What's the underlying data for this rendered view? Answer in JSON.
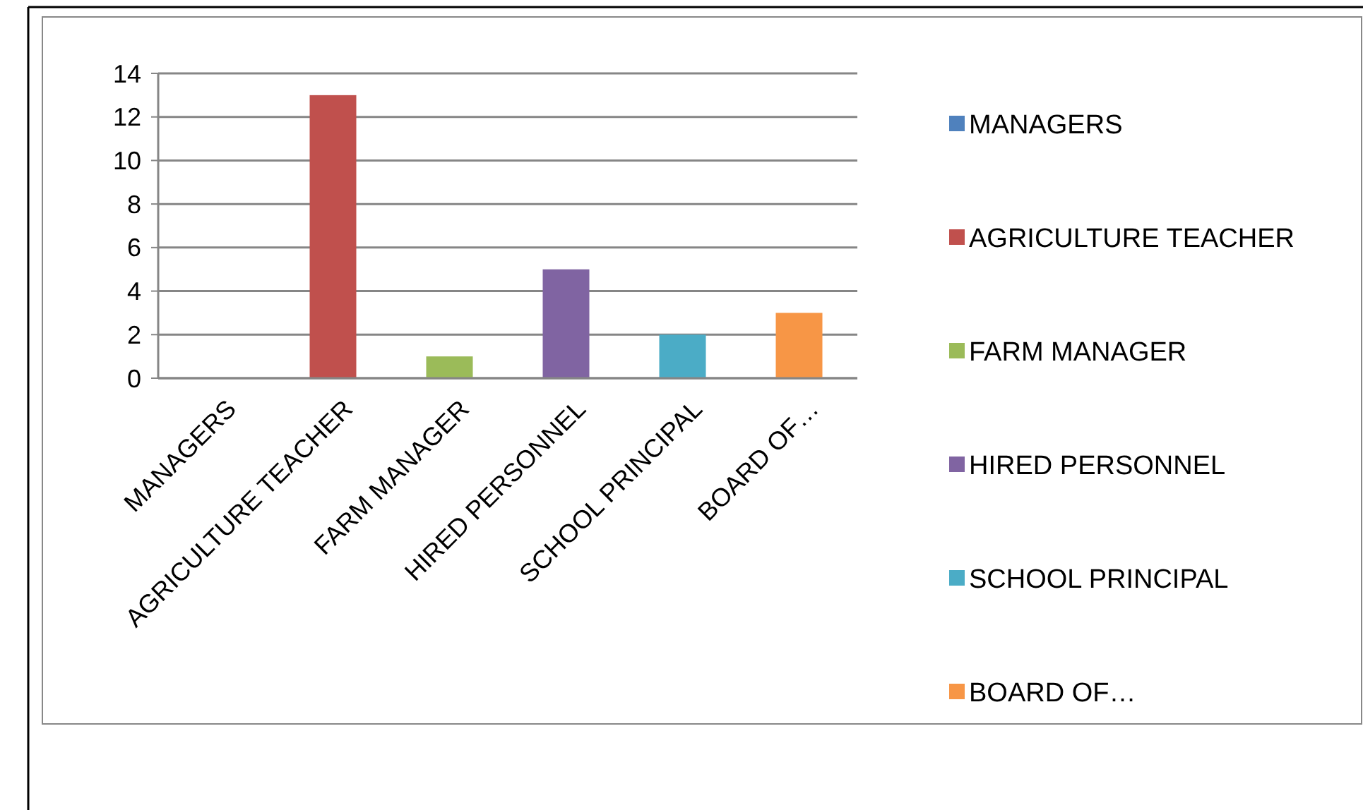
{
  "chart_data": {
    "type": "bar",
    "stacked": true,
    "categories": [
      "MANAGERS",
      "AGRICULTURE TEACHER",
      "FARM MANAGER",
      "HIRED PERSONNEL",
      "SCHOOL PRINCIPAL",
      "BOARD OF…"
    ],
    "series": [
      {
        "name": "MANAGERS",
        "color": "#4f81bd",
        "values": [
          0,
          null,
          null,
          null,
          null,
          null
        ]
      },
      {
        "name": "AGRICULTURE TEACHER",
        "color": "#c0504d",
        "values": [
          null,
          13,
          null,
          null,
          null,
          null
        ]
      },
      {
        "name": "FARM MANAGER",
        "color": "#9bbb59",
        "values": [
          null,
          null,
          1,
          null,
          null,
          null
        ]
      },
      {
        "name": "HIRED PERSONNEL",
        "color": "#8064a2",
        "values": [
          null,
          null,
          null,
          5,
          null,
          null
        ]
      },
      {
        "name": "SCHOOL PRINCIPAL",
        "color": "#4bacc6",
        "values": [
          null,
          null,
          null,
          null,
          2,
          null
        ]
      },
      {
        "name": "BOARD OF…",
        "color": "#f79646",
        "values": [
          null,
          null,
          null,
          null,
          null,
          3
        ]
      }
    ],
    "ylim": [
      0,
      14
    ],
    "yticks": [
      0,
      2,
      4,
      6,
      8,
      10,
      12,
      14
    ],
    "grid": "y",
    "legend": "right"
  }
}
